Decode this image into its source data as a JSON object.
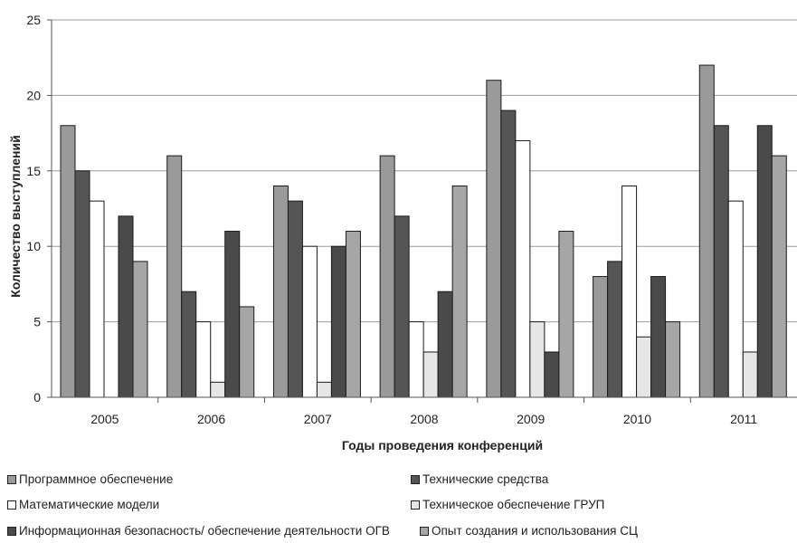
{
  "chart_data": {
    "type": "bar",
    "xlabel": "Годы проведения конференций",
    "ylabel": "Количество выступлений",
    "ylim": [
      0,
      25
    ],
    "yticks": [
      "0",
      "5",
      "10",
      "15",
      "20",
      "25"
    ],
    "grid": true,
    "legend_position": "bottom",
    "categories": [
      "2005",
      "2006",
      "2007",
      "2008",
      "2009",
      "2010",
      "2011"
    ],
    "series": [
      {
        "name": "Программное обеспечение",
        "color": "#9a9a9a",
        "values": [
          18,
          16,
          14,
          16,
          21,
          8,
          22
        ]
      },
      {
        "name": "Технические средства",
        "color": "#555555",
        "values": [
          15,
          7,
          13,
          12,
          19,
          9,
          18
        ]
      },
      {
        "name": "Математические модели",
        "color": "#ffffff",
        "values": [
          13,
          5,
          10,
          5,
          17,
          14,
          13
        ]
      },
      {
        "name": "Техническое обеспечение ГРУП",
        "color": "#e6e6e6",
        "values": [
          0,
          1,
          1,
          3,
          5,
          4,
          3
        ]
      },
      {
        "name": "Информационная безопасность/ обеспечение деятельности ОГВ",
        "color": "#4a4a4a",
        "values": [
          12,
          11,
          10,
          7,
          3,
          8,
          18
        ]
      },
      {
        "name": "Опыт создания и использования СЦ",
        "color": "#a6a6a6",
        "values": [
          9,
          6,
          11,
          14,
          11,
          5,
          16
        ]
      }
    ]
  }
}
